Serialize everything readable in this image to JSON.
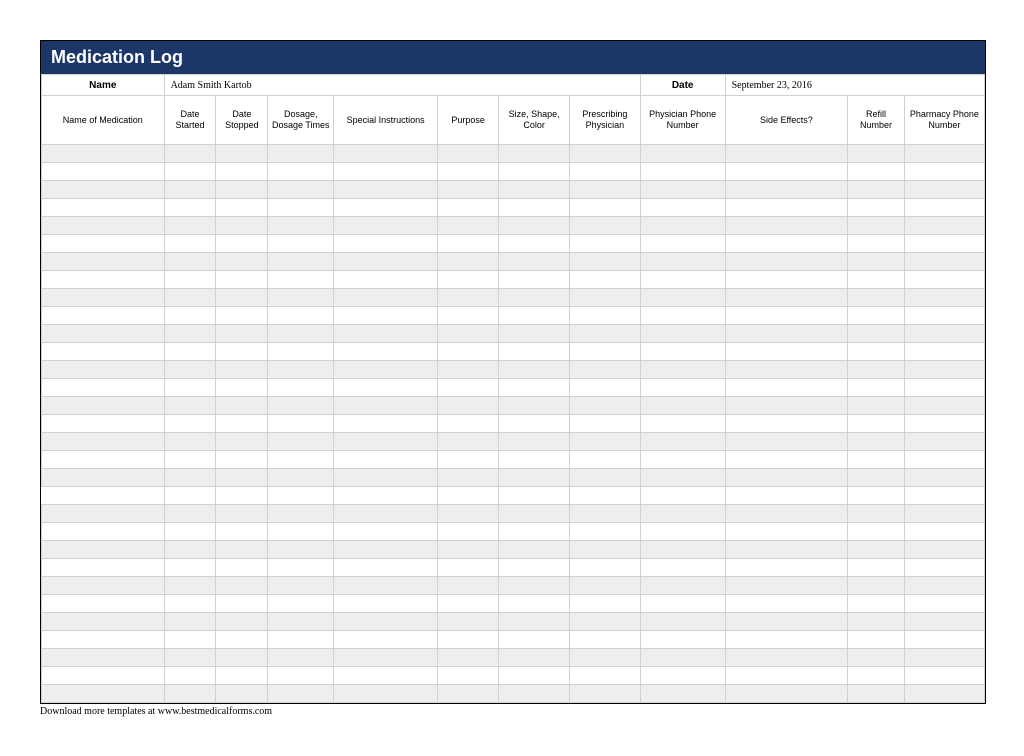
{
  "title": "Medication Log",
  "name_label": "Name",
  "name_value": "Adam Smith Kartob",
  "date_label": "Date",
  "date_value": "September 23, 2016",
  "columns": [
    "Name of Medication",
    "Date Started",
    "Date Stopped",
    "Dosage, Dosage Times",
    "Special Instructions",
    "Purpose",
    "Size, Shape, Color",
    "Prescribing Physician",
    "Physician Phone Number",
    "Side Effects?",
    "Refill Number",
    "Pharmacy Phone Number"
  ],
  "column_widths_pct": [
    13.0,
    5.5,
    5.5,
    7.0,
    11.0,
    6.5,
    7.5,
    7.5,
    9.0,
    13.0,
    6.0,
    8.5
  ],
  "section1_row_count": 19,
  "section2_row_count": 11,
  "colors": {
    "title_bar_bg": "#1b3667",
    "title_bar_text": "#ffffff",
    "frame_border": "#000000",
    "cell_border": "#d0d0d0",
    "row_odd_bg": "#eeeeee",
    "row_even_bg": "#ffffff",
    "page_bg": "#ffffff",
    "text": "#000000"
  },
  "fonts": {
    "title": "Arial",
    "title_size_pt": 18,
    "header": "Arial",
    "header_size_pt": 9,
    "body": "Georgia",
    "body_size_pt": 10
  },
  "footer_text": "Download more templates at www.bestmedicalforms.com"
}
